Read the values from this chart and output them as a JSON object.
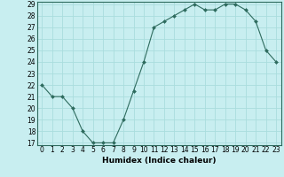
{
  "x": [
    0,
    1,
    2,
    3,
    4,
    5,
    6,
    7,
    8,
    9,
    10,
    11,
    12,
    13,
    14,
    15,
    16,
    17,
    18,
    19,
    20,
    21,
    22,
    23
  ],
  "y": [
    22,
    21,
    21,
    20,
    18,
    17,
    17,
    17,
    19,
    21.5,
    24,
    27,
    27.5,
    28,
    28.5,
    29,
    28.5,
    28.5,
    29,
    29,
    28.5,
    27.5,
    25,
    24
  ],
  "title": "",
  "xlabel": "Humidex (Indice chaleur)",
  "ylabel": "",
  "ylim": [
    17,
    29
  ],
  "xlim": [
    -0.5,
    23.5
  ],
  "yticks": [
    17,
    18,
    19,
    20,
    21,
    22,
    23,
    24,
    25,
    26,
    27,
    28,
    29
  ],
  "xticks": [
    0,
    1,
    2,
    3,
    4,
    5,
    6,
    7,
    8,
    9,
    10,
    11,
    12,
    13,
    14,
    15,
    16,
    17,
    18,
    19,
    20,
    21,
    22,
    23
  ],
  "line_color": "#2E6B5E",
  "marker": "D",
  "marker_size": 2,
  "bg_color": "#C8EEF0",
  "grid_color": "#aadddd",
  "tick_fontsize": 5.5,
  "xlabel_fontsize": 6.5
}
